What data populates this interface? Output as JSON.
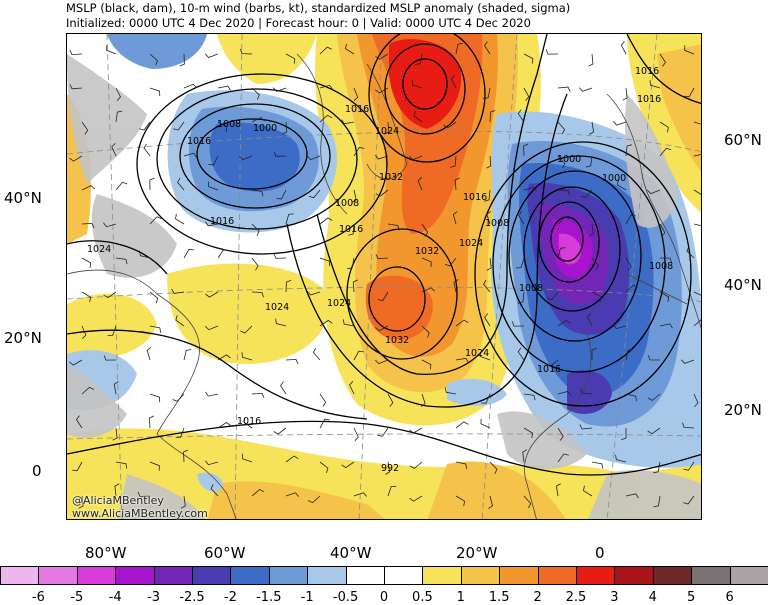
{
  "title_line1": "MSLP (black, dam), 10-m wind (barbs, kt), standardized MSLP anomaly (shaded, sigma)",
  "title_line2": "Initialized: 0000 UTC 4 Dec 2020 | Forecast hour: 0 | Valid: 0000 UTC 4 Dec 2020",
  "credit_handle": "@AliciaMBentley",
  "credit_url": "www.AliciaMBentley.com",
  "lat_labels_left": [
    "40°N",
    "20°N",
    "0"
  ],
  "lat_labels_right": [
    "60°N",
    "40°N",
    "20°N"
  ],
  "lon_labels": [
    "80°W",
    "60°W",
    "40°W",
    "20°W",
    "0"
  ],
  "pressure_labels": [
    "1008",
    "1000",
    "1016",
    "1016",
    "1024",
    "1016",
    "1008",
    "1016",
    "1024",
    "1032",
    "1024",
    "1032",
    "1016",
    "1008",
    "1024",
    "1024",
    "1032",
    "1024",
    "1016",
    "1016",
    "992",
    "1000",
    "1000",
    "1008",
    "1008",
    "1016",
    "1016"
  ],
  "colorbar": {
    "labels": [
      "-6",
      "-5",
      "-4",
      "-3",
      "-2.5",
      "-2",
      "-1.5",
      "-1",
      "-0.5",
      "0",
      "0.5",
      "1",
      "1.5",
      "2",
      "2.5",
      "3",
      "4",
      "5",
      "6"
    ],
    "colors": [
      "#eeb6ee",
      "#e57ae5",
      "#d83cd8",
      "#a614cc",
      "#7326b6",
      "#4a3cb0",
      "#3d6cc6",
      "#6e9ad8",
      "#a8c8ea",
      "#ffffff",
      "#ffffff",
      "#f7e35a",
      "#f5c24a",
      "#f2962e",
      "#ef6a25",
      "#e61c15",
      "#a8141a",
      "#6e2a2a",
      "#7a7272",
      "#aaa4a4"
    ]
  },
  "colors": {
    "land_grey": "#c4c4c4",
    "contour": "#000000",
    "grid": "#8a8a8a"
  }
}
